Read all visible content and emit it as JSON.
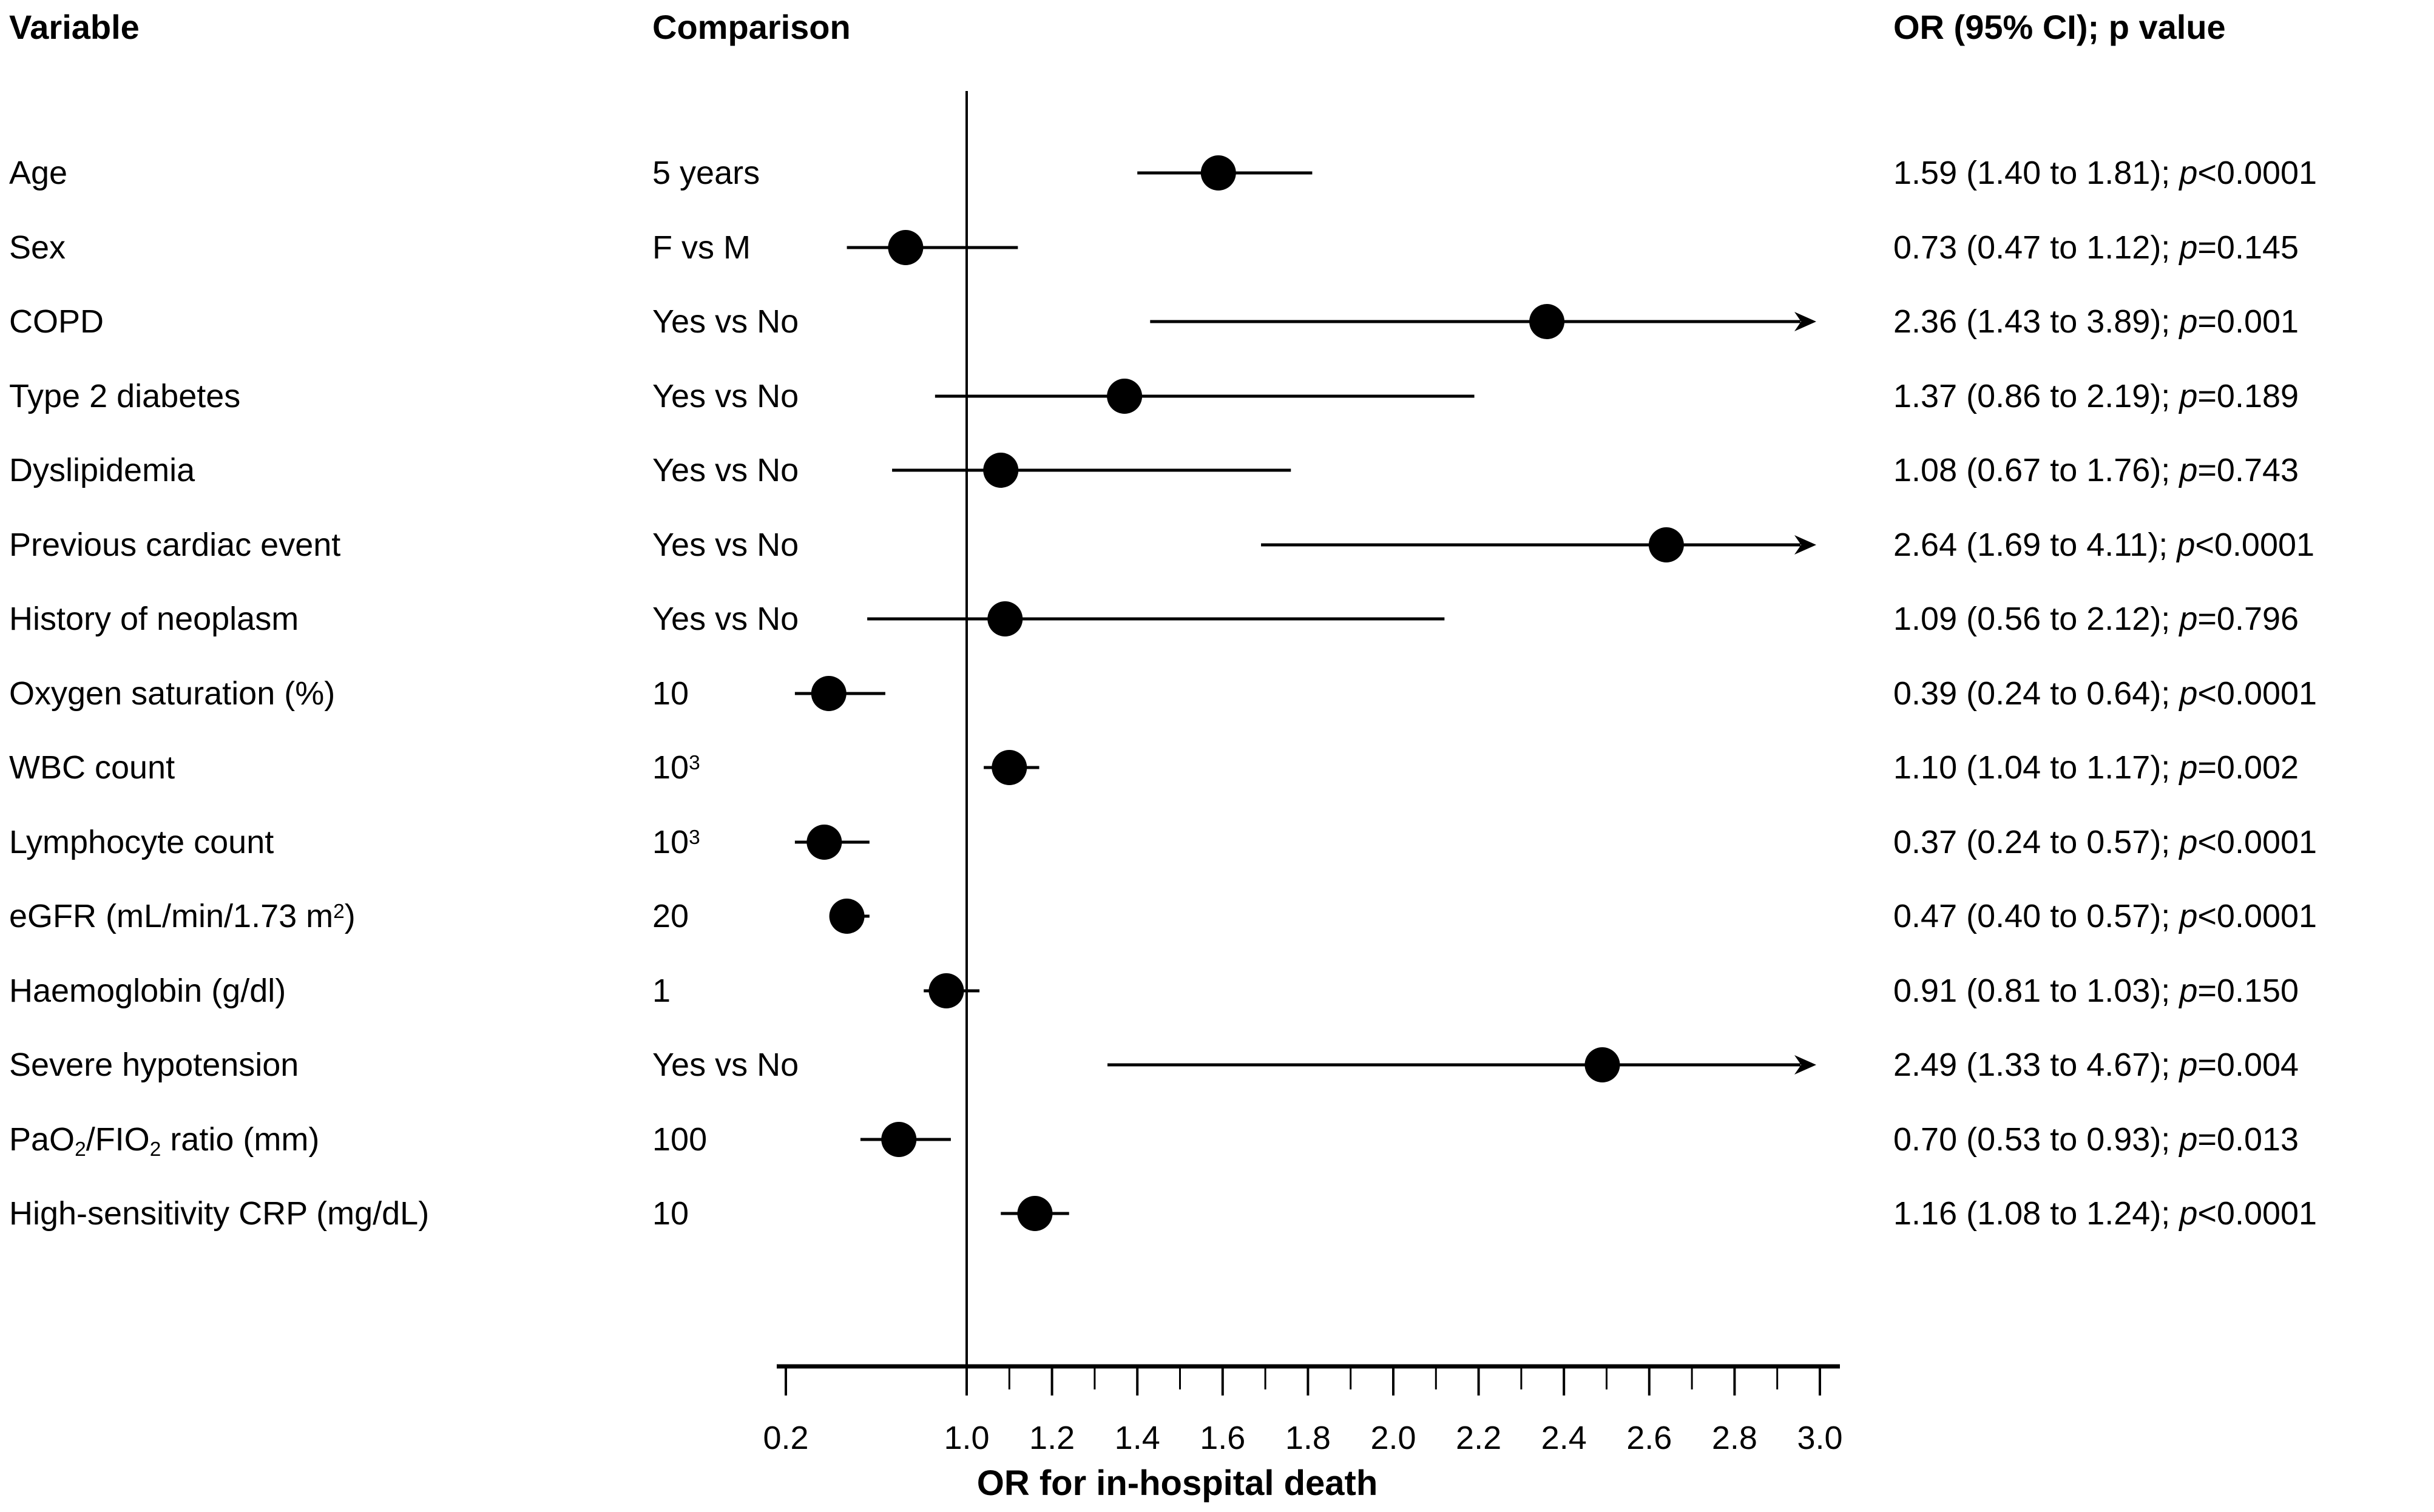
{
  "page": {
    "background": "#ffffff",
    "ink": "#000000"
  },
  "headers": {
    "variable": "Variable",
    "comparison": "Comparison",
    "or_ci": "OR (95% CI); p value"
  },
  "chart_data": {
    "type": "forest",
    "title": "",
    "xlabel": "OR for in-hospital death",
    "x_axis": {
      "major_tick_labels": [
        "0.2",
        "1.0",
        "1.2",
        "1.4",
        "1.6",
        "1.8",
        "2.0",
        "2.2",
        "2.4",
        "2.6",
        "2.8",
        "3.0"
      ],
      "major_tick_values": [
        0.2,
        1.0,
        1.2,
        1.4,
        1.6,
        1.8,
        2.0,
        2.2,
        2.4,
        2.6,
        2.8,
        3.0
      ],
      "minor_tick_values": [
        1.1,
        1.3,
        1.5,
        1.7,
        1.9,
        2.1,
        2.3,
        2.5,
        2.7,
        2.9
      ],
      "reference_line": 1.0,
      "clip_max": 3.0,
      "note": "axis segment 0.2-1.0 is compressed; upper CI limits beyond 3.0 are drawn as arrows"
    },
    "rows": [
      {
        "variable": "Age",
        "comparison": "5 years",
        "or": 1.59,
        "lcl": 1.4,
        "ucl": 1.81,
        "or_ci": "1.59 (1.40 to 1.81);",
        "p": "p<0.0001",
        "arrow": false
      },
      {
        "variable": "Sex",
        "comparison": "F vs M",
        "or": 0.73,
        "lcl": 0.47,
        "ucl": 1.12,
        "or_ci": "0.73 (0.47 to 1.12);",
        "p": "p=0.145",
        "arrow": false
      },
      {
        "variable": "COPD",
        "comparison": "Yes vs No",
        "or": 2.36,
        "lcl": 1.43,
        "ucl": 3.89,
        "or_ci": "2.36 (1.43 to 3.89);",
        "p": "p=0.001",
        "arrow": true
      },
      {
        "variable": "Type 2 diabetes",
        "comparison": "Yes vs No",
        "or": 1.37,
        "lcl": 0.86,
        "ucl": 2.19,
        "or_ci": "1.37 (0.86 to 2.19);",
        "p": "p=0.189",
        "arrow": false
      },
      {
        "variable": "Dyslipidemia",
        "comparison": "Yes vs No",
        "or": 1.08,
        "lcl": 0.67,
        "ucl": 1.76,
        "or_ci": "1.08 (0.67 to 1.76);",
        "p": "p=0.743",
        "arrow": false
      },
      {
        "variable": "Previous cardiac event",
        "comparison": "Yes vs No",
        "or": 2.64,
        "lcl": 1.69,
        "ucl": 4.11,
        "or_ci": "2.64 (1.69 to 4.11);",
        "p": "p<0.0001",
        "arrow": true
      },
      {
        "variable": "History of neoplasm",
        "comparison": "Yes vs No",
        "or": 1.09,
        "lcl": 0.56,
        "ucl": 2.12,
        "or_ci": "1.09 (0.56 to 2.12);",
        "p": "p=0.796",
        "arrow": false
      },
      {
        "variable": "Oxygen saturation (%)",
        "comparison": "10",
        "or": 0.39,
        "lcl": 0.24,
        "ucl": 0.64,
        "or_ci": "0.39 (0.24 to 0.64);",
        "p": "p<0.0001",
        "arrow": false
      },
      {
        "variable": "WBC count",
        "comparison": "10^{3}",
        "or": 1.1,
        "lcl": 1.04,
        "ucl": 1.17,
        "or_ci": "1.10 (1.04 to 1.17);",
        "p": "p=0.002",
        "arrow": false
      },
      {
        "variable": "Lymphocyte count",
        "comparison": "10^{3}",
        "or": 0.37,
        "lcl": 0.24,
        "ucl": 0.57,
        "or_ci": "0.37 (0.24 to 0.57);",
        "p": "p<0.0001",
        "arrow": false
      },
      {
        "variable": "eGFR (mL/min/1.73 m^{2})",
        "comparison": "20",
        "or": 0.47,
        "lcl": 0.4,
        "ucl": 0.57,
        "or_ci": "0.47 (0.40 to 0.57);",
        "p": "p<0.0001",
        "arrow": false
      },
      {
        "variable": "Haemoglobin (g/dl)",
        "comparison": "1",
        "or": 0.91,
        "lcl": 0.81,
        "ucl": 1.03,
        "or_ci": "0.91 (0.81 to 1.03);",
        "p": "p=0.150",
        "arrow": false
      },
      {
        "variable": "Severe hypotension",
        "comparison": "Yes vs No",
        "or": 2.49,
        "lcl": 1.33,
        "ucl": 4.67,
        "or_ci": "2.49 (1.33 to 4.67);",
        "p": "p=0.004",
        "arrow": true
      },
      {
        "variable": "PaO_{2}/FIO_{2} ratio (mm)",
        "comparison": "100",
        "or": 0.7,
        "lcl": 0.53,
        "ucl": 0.93,
        "or_ci": "0.70 (0.53 to 0.93);",
        "p": "p=0.013",
        "arrow": false
      },
      {
        "variable": "High-sensitivity CRP (mg/dL)",
        "comparison": "10",
        "or": 1.16,
        "lcl": 1.08,
        "ucl": 1.24,
        "or_ci": "1.16 (1.08 to 1.24);",
        "p": "p<0.0001",
        "arrow": false
      }
    ]
  }
}
